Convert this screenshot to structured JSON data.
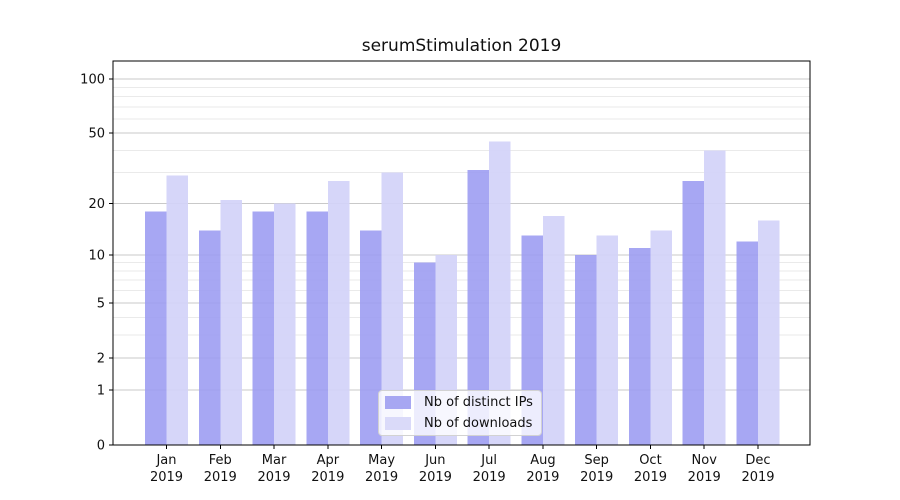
{
  "figure": {
    "title": "serumStimulation 2019",
    "background": "#ffffff"
  },
  "chart_data": {
    "type": "bar",
    "title": "serumStimulation 2019",
    "categories": [
      "Jan 2019",
      "Feb 2019",
      "Mar 2019",
      "Apr 2019",
      "May 2019",
      "Jun 2019",
      "Jul 2019",
      "Aug 2019",
      "Sep 2019",
      "Oct 2019",
      "Nov 2019",
      "Dec 2019"
    ],
    "series": [
      {
        "name": "Nb of distinct IPs",
        "values": [
          18,
          14,
          18,
          18,
          14,
          9,
          31,
          13,
          10,
          11,
          27,
          12
        ]
      },
      {
        "name": "Nb of downloads",
        "values": [
          29,
          21,
          20,
          27,
          30,
          10,
          45,
          17,
          13,
          14,
          40,
          16
        ]
      }
    ],
    "yscale": "log1p",
    "yticks": [
      0,
      1,
      2,
      5,
      10,
      20,
      50,
      100
    ],
    "minor_gridlines": [
      3,
      4,
      6,
      7,
      8,
      9,
      30,
      40,
      60,
      70,
      80,
      90
    ],
    "ylim": [
      0,
      126
    ],
    "xlabel": "",
    "ylabel": "",
    "grid": true,
    "legend_position": "lower center"
  },
  "legend": {
    "items": [
      {
        "label": "Nb of distinct IPs"
      },
      {
        "label": "Nb of downloads"
      }
    ]
  },
  "colors": {
    "bar_dark": "#9b9bf1",
    "bar_dark_opacity": 0.88,
    "bar_light": "#d2d2f8",
    "bar_light_opacity": 0.92,
    "legend_dark": "#a7a7f2",
    "legend_light": "#dadaf9",
    "grid_major": "#c9c9c9",
    "grid_minor": "#eaeaea",
    "axis": "#000000",
    "text": "#111111"
  }
}
